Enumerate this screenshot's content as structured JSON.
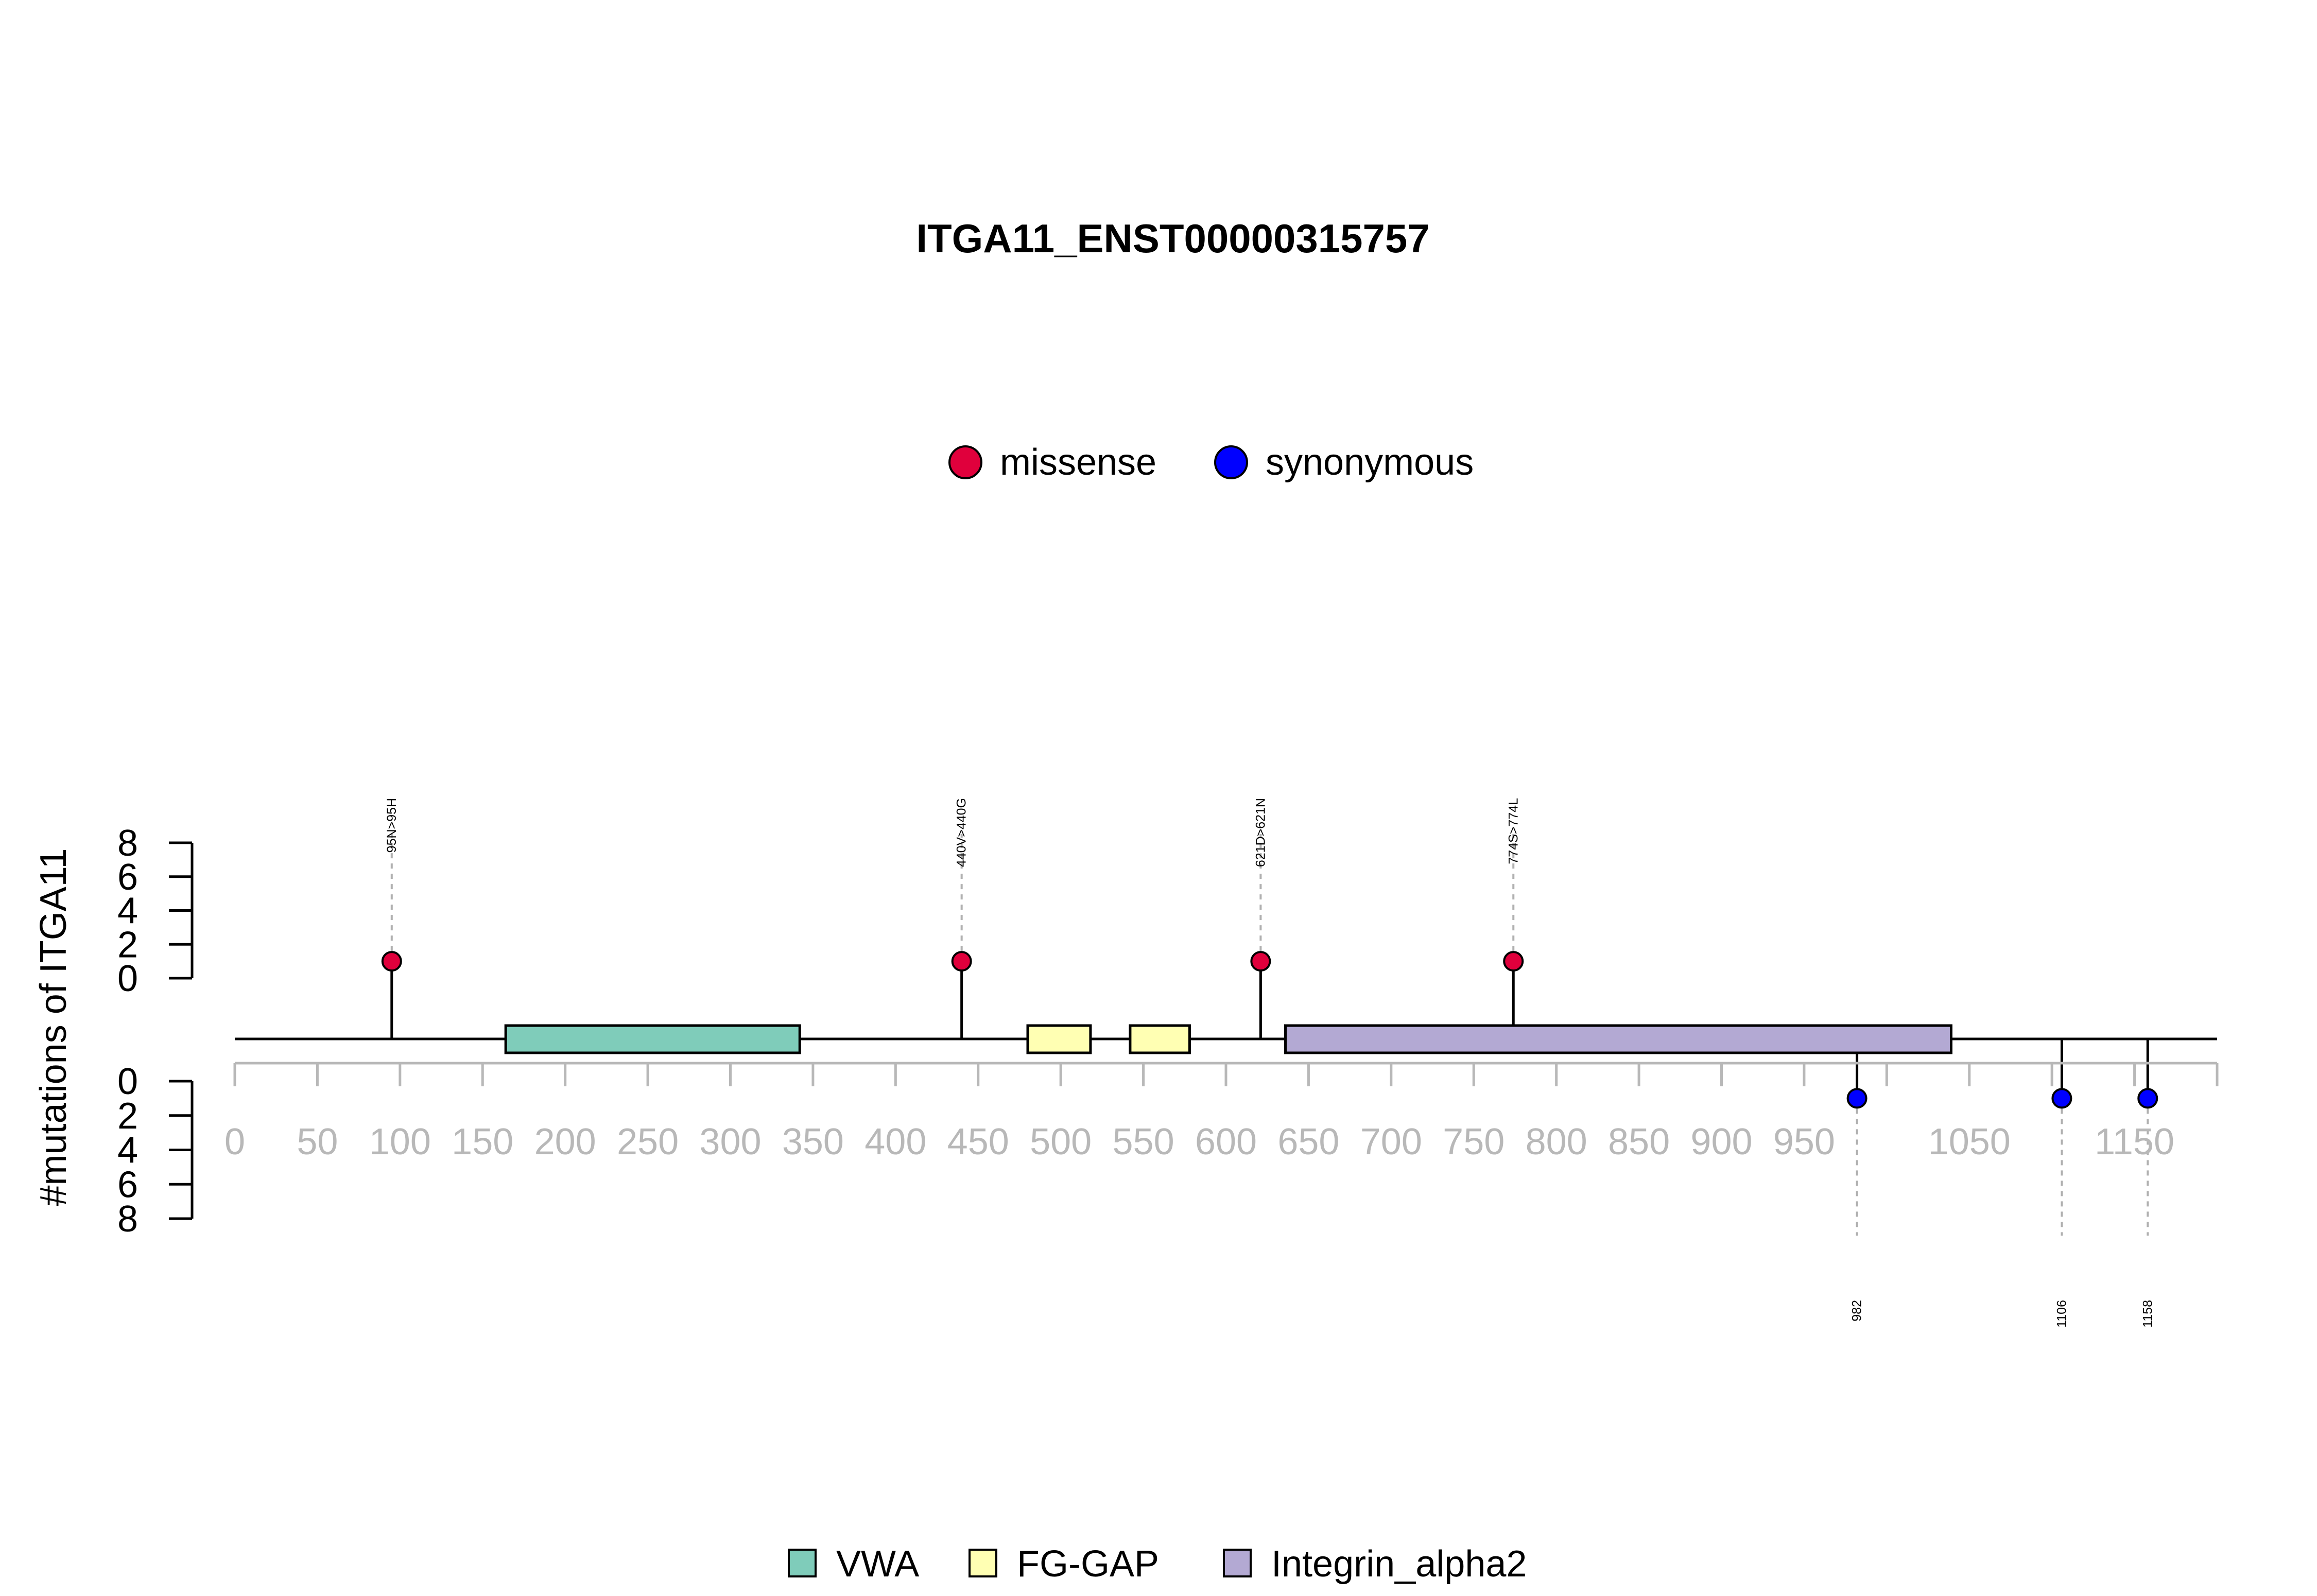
{
  "chart_data": {
    "type": "lollipop",
    "title": "ITGA11_ENST00000315757",
    "ylabel": "#mutations of ITGA11",
    "xlim": [
      0,
      1200
    ],
    "x_ticks": [
      0,
      50,
      100,
      150,
      200,
      250,
      300,
      350,
      400,
      450,
      500,
      550,
      600,
      650,
      700,
      750,
      800,
      850,
      900,
      950,
      1000,
      1050,
      1100,
      1150,
      1200
    ],
    "x_tick_labels": [
      "0",
      "50",
      "100",
      "150",
      "200",
      "250",
      "300",
      "350",
      "400",
      "450",
      "500",
      "550",
      "600",
      "650",
      "700",
      "750",
      "800",
      "850",
      "900",
      "950",
      "1050",
      "1150"
    ],
    "x_tick_label_values": [
      0,
      50,
      100,
      150,
      200,
      250,
      300,
      350,
      400,
      450,
      500,
      550,
      600,
      650,
      700,
      750,
      800,
      850,
      900,
      950,
      1050,
      1150
    ],
    "y_ticks": [
      0,
      2,
      4,
      6,
      8
    ],
    "y_tick_labels": [
      "0",
      "2",
      "4",
      "6",
      "8"
    ],
    "ylim": [
      0,
      8
    ],
    "legend_types": [
      {
        "name": "missense",
        "color": "#e0003c"
      },
      {
        "name": "synonymous",
        "color": "#0000ff"
      }
    ],
    "legend_domains": [
      {
        "name": "VWA",
        "color": "#7fccba"
      },
      {
        "name": "FG-GAP",
        "color": "#ffffb3"
      },
      {
        "name": "Integrin_alpha2",
        "color": "#b3a9d3"
      }
    ],
    "domains": [
      {
        "name": "VWA",
        "start": 164,
        "end": 342,
        "color": "#7fccba"
      },
      {
        "name": "FG-GAP",
        "start": 480,
        "end": 518,
        "color": "#ffffb3"
      },
      {
        "name": "FG-GAP",
        "start": 542,
        "end": 578,
        "color": "#ffffb3"
      },
      {
        "name": "Integrin_alpha2",
        "start": 636,
        "end": 1039,
        "color": "#b3a9d3"
      }
    ],
    "mutations_top": [
      {
        "position": 95,
        "label": "95N>95H",
        "count": 1,
        "type": "missense"
      },
      {
        "position": 440,
        "label": "440V>440G",
        "count": 1,
        "type": "missense"
      },
      {
        "position": 621,
        "label": "621D>621N",
        "count": 1,
        "type": "missense"
      },
      {
        "position": 774,
        "label": "774S>774L",
        "count": 1,
        "type": "missense"
      }
    ],
    "mutations_bottom": [
      {
        "position": 982,
        "label": "982",
        "count": 1,
        "type": "synonymous"
      },
      {
        "position": 1106,
        "label": "1106",
        "count": 1,
        "type": "synonymous"
      },
      {
        "position": 1158,
        "label": "1158",
        "count": 1,
        "type": "synonymous"
      }
    ]
  }
}
